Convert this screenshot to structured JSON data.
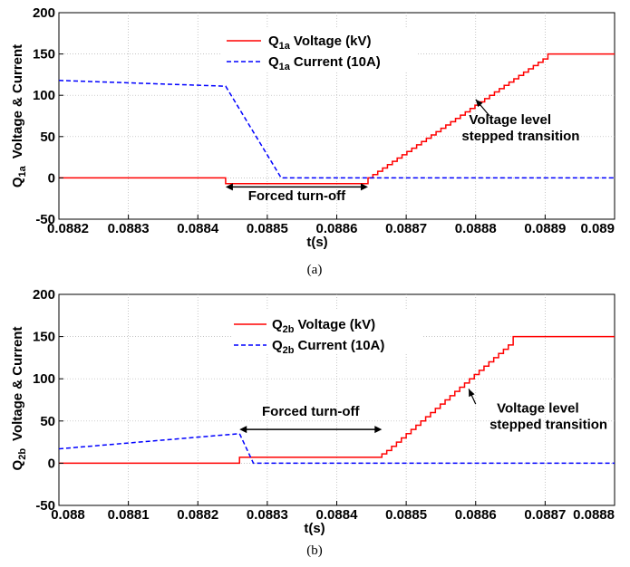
{
  "chart_data": [
    {
      "type": "line",
      "caption": "(a)",
      "xlabel": "t(s)",
      "ylabel_main": "Q",
      "ylabel_sub": "1a",
      "ylabel_rest": "Voltage & Current",
      "xlim": [
        0.0882,
        0.089
      ],
      "ylim": [
        -50,
        200
      ],
      "xticks": [
        "0.0882",
        "0.0883",
        "0.0884",
        "0.0885",
        "0.0886",
        "0.0887",
        "0.0888",
        "0.0889",
        "0.089"
      ],
      "yticks": [
        "-50",
        "0",
        "50",
        "100",
        "150",
        "200"
      ],
      "grid": true,
      "legend_position": "top-center",
      "series": [
        {
          "legend_main": "Q",
          "legend_sub": "1a",
          "legend_rest": "Voltage (kV)",
          "color": "#ff0000",
          "style": "solid",
          "points": [
            [
              0.0882,
              0
            ],
            [
              0.08844,
              0
            ],
            [
              0.08844,
              -7
            ],
            [
              0.088645,
              -7
            ],
            [
              0.088645,
              0
            ],
            [
              0.088652,
              0
            ],
            [
              0.088652,
              4
            ],
            [
              0.088659,
              4
            ],
            [
              0.088659,
              8
            ],
            [
              0.088666,
              8
            ],
            [
              0.088666,
              12
            ],
            [
              0.088673,
              12
            ],
            [
              0.088673,
              16
            ],
            [
              0.08868,
              16
            ],
            [
              0.08868,
              20
            ],
            [
              0.088687,
              20
            ],
            [
              0.088687,
              24
            ],
            [
              0.088694,
              24
            ],
            [
              0.088694,
              28
            ],
            [
              0.088701,
              28
            ],
            [
              0.088701,
              32
            ],
            [
              0.088708,
              32
            ],
            [
              0.088708,
              36
            ],
            [
              0.088715,
              36
            ],
            [
              0.088715,
              40
            ],
            [
              0.088722,
              40
            ],
            [
              0.088722,
              44
            ],
            [
              0.088729,
              44
            ],
            [
              0.088729,
              48
            ],
            [
              0.088736,
              48
            ],
            [
              0.088736,
              52
            ],
            [
              0.088743,
              52
            ],
            [
              0.088743,
              56
            ],
            [
              0.08875,
              56
            ],
            [
              0.08875,
              60
            ],
            [
              0.088757,
              60
            ],
            [
              0.088757,
              64
            ],
            [
              0.088764,
              64
            ],
            [
              0.088764,
              68
            ],
            [
              0.088771,
              68
            ],
            [
              0.088771,
              72
            ],
            [
              0.088778,
              72
            ],
            [
              0.088778,
              76
            ],
            [
              0.088785,
              76
            ],
            [
              0.088785,
              80
            ],
            [
              0.088792,
              80
            ],
            [
              0.088792,
              84
            ],
            [
              0.088799,
              84
            ],
            [
              0.088799,
              88
            ],
            [
              0.088806,
              88
            ],
            [
              0.088806,
              92
            ],
            [
              0.088813,
              92
            ],
            [
              0.088813,
              96
            ],
            [
              0.08882,
              96
            ],
            [
              0.08882,
              100
            ],
            [
              0.088827,
              100
            ],
            [
              0.088827,
              104
            ],
            [
              0.088834,
              104
            ],
            [
              0.088834,
              108
            ],
            [
              0.088841,
              108
            ],
            [
              0.088841,
              112
            ],
            [
              0.088848,
              112
            ],
            [
              0.088848,
              116
            ],
            [
              0.088855,
              116
            ],
            [
              0.088855,
              120
            ],
            [
              0.088862,
              120
            ],
            [
              0.088862,
              124
            ],
            [
              0.088869,
              124
            ],
            [
              0.088869,
              128
            ],
            [
              0.088876,
              128
            ],
            [
              0.088876,
              132
            ],
            [
              0.088883,
              132
            ],
            [
              0.088883,
              136
            ],
            [
              0.08889,
              136
            ],
            [
              0.08889,
              140
            ],
            [
              0.088897,
              140
            ],
            [
              0.088897,
              144
            ],
            [
              0.088904,
              144
            ],
            [
              0.088904,
              150
            ],
            [
              0.089,
              150
            ]
          ]
        },
        {
          "legend_main": "Q",
          "legend_sub": "1a",
          "legend_rest": "Current (10A)",
          "color": "#0000ff",
          "style": "dashed",
          "points": [
            [
              0.0882,
              118
            ],
            [
              0.08844,
              111
            ],
            [
              0.08852,
              0
            ],
            [
              0.089,
              0
            ]
          ]
        }
      ],
      "annotations": [
        {
          "text": "Forced turn-off",
          "arrow": "double",
          "x1": 0.08844,
          "x2": 0.088645,
          "y": -11,
          "text_y": -27
        },
        {
          "text_lines": [
            "Voltage level",
            "stepped transition"
          ],
          "arrow_from": [
            0.08882,
            75
          ],
          "arrow_to": [
            0.0888,
            95
          ],
          "text_x": 0.08878,
          "text_y": 65
        }
      ]
    },
    {
      "type": "line",
      "caption": "(b)",
      "xlabel": "t(s)",
      "ylabel_main": "Q",
      "ylabel_sub": "2b",
      "ylabel_rest": "Voltage & Current",
      "xlim": [
        0.088,
        0.0888
      ],
      "ylim": [
        -50,
        200
      ],
      "xticks": [
        "0.088",
        "0.0881",
        "0.0882",
        "0.0883",
        "0.0884",
        "0.0885",
        "0.0886",
        "0.0887",
        "0.0888"
      ],
      "yticks": [
        "-50",
        "0",
        "50",
        "100",
        "150",
        "200"
      ],
      "grid": true,
      "legend_position": "top-center",
      "series": [
        {
          "legend_main": "Q",
          "legend_sub": "2b",
          "legend_rest": "Voltage (kV)",
          "color": "#ff0000",
          "style": "solid",
          "points": [
            [
              0.088,
              0
            ],
            [
              0.08826,
              0
            ],
            [
              0.08826,
              7
            ],
            [
              0.088465,
              7
            ],
            [
              0.088465,
              11
            ],
            [
              0.088472,
              11
            ],
            [
              0.088472,
              15
            ],
            [
              0.088479,
              15
            ],
            [
              0.088479,
              20
            ],
            [
              0.088486,
              20
            ],
            [
              0.088486,
              25
            ],
            [
              0.088493,
              25
            ],
            [
              0.088493,
              30
            ],
            [
              0.0885,
              30
            ],
            [
              0.0885,
              35
            ],
            [
              0.088507,
              35
            ],
            [
              0.088507,
              40
            ],
            [
              0.088514,
              40
            ],
            [
              0.088514,
              45
            ],
            [
              0.088521,
              45
            ],
            [
              0.088521,
              50
            ],
            [
              0.088528,
              50
            ],
            [
              0.088528,
              55
            ],
            [
              0.088535,
              55
            ],
            [
              0.088535,
              60
            ],
            [
              0.088542,
              60
            ],
            [
              0.088542,
              65
            ],
            [
              0.088549,
              65
            ],
            [
              0.088549,
              70
            ],
            [
              0.088556,
              70
            ],
            [
              0.088556,
              75
            ],
            [
              0.088563,
              75
            ],
            [
              0.088563,
              80
            ],
            [
              0.08857,
              80
            ],
            [
              0.08857,
              85
            ],
            [
              0.088577,
              85
            ],
            [
              0.088577,
              90
            ],
            [
              0.088584,
              90
            ],
            [
              0.088584,
              95
            ],
            [
              0.088591,
              95
            ],
            [
              0.088591,
              100
            ],
            [
              0.088598,
              100
            ],
            [
              0.088598,
              105
            ],
            [
              0.088605,
              105
            ],
            [
              0.088605,
              110
            ],
            [
              0.088612,
              110
            ],
            [
              0.088612,
              115
            ],
            [
              0.088619,
              115
            ],
            [
              0.088619,
              120
            ],
            [
              0.088626,
              120
            ],
            [
              0.088626,
              125
            ],
            [
              0.088633,
              125
            ],
            [
              0.088633,
              130
            ],
            [
              0.08864,
              130
            ],
            [
              0.08864,
              135
            ],
            [
              0.088647,
              135
            ],
            [
              0.088647,
              140
            ],
            [
              0.088654,
              140
            ],
            [
              0.088654,
              150
            ],
            [
              0.0888,
              150
            ]
          ]
        },
        {
          "legend_main": "Q",
          "legend_sub": "2b",
          "legend_rest": "Current (10A)",
          "color": "#0000ff",
          "style": "dashed",
          "points": [
            [
              0.088,
              17
            ],
            [
              0.08826,
              35
            ],
            [
              0.08828,
              0
            ],
            [
              0.0888,
              0
            ]
          ]
        }
      ],
      "annotations": [
        {
          "text": "Forced turn-off",
          "arrow": "double",
          "x1": 0.08826,
          "x2": 0.088465,
          "y": 40,
          "text_y": 56
        },
        {
          "text_lines": [
            "Voltage level",
            "stepped transition"
          ],
          "arrow_from": [
            0.0886,
            70
          ],
          "arrow_to": [
            0.08859,
            88
          ],
          "text_x": 0.08862,
          "text_y": 60
        }
      ]
    }
  ]
}
